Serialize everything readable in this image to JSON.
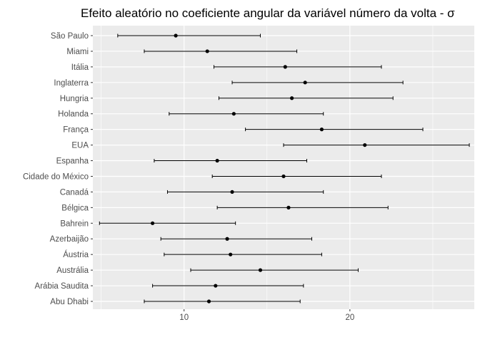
{
  "chart_data": {
    "type": "scatter",
    "title": "Efeito aleatório no coeficiente angular da variável número da volta - σ",
    "xlabel": "",
    "ylabel": "",
    "xlim": [
      4.5,
      27.5
    ],
    "x_major_ticks": [
      10,
      20
    ],
    "x_minor_ticks": [
      5,
      15,
      25
    ],
    "grid": true,
    "background": "#ebebeb",
    "grid_color": "#ffffff",
    "point_color": "#000000",
    "categories": [
      "São Paulo",
      "Miami",
      "Itália",
      "Inglaterra",
      "Hungria",
      "Holanda",
      "França",
      "EUA",
      "Espanha",
      "Cidade do México",
      "Canadá",
      "Bélgica",
      "Bahrein",
      "Azerbaijão",
      "Áustria",
      "Austrália",
      "Arábia Saudita",
      "Abu Dhabi"
    ],
    "points": [
      {
        "category": "São Paulo",
        "estimate": 9.5,
        "lower": 6.0,
        "upper": 14.6
      },
      {
        "category": "Miami",
        "estimate": 11.4,
        "lower": 7.6,
        "upper": 16.8
      },
      {
        "category": "Itália",
        "estimate": 16.1,
        "lower": 11.8,
        "upper": 21.9
      },
      {
        "category": "Inglaterra",
        "estimate": 17.3,
        "lower": 12.9,
        "upper": 23.2
      },
      {
        "category": "Hungria",
        "estimate": 16.5,
        "lower": 12.1,
        "upper": 22.6
      },
      {
        "category": "Holanda",
        "estimate": 13.0,
        "lower": 9.1,
        "upper": 18.4
      },
      {
        "category": "França",
        "estimate": 18.3,
        "lower": 13.7,
        "upper": 24.4
      },
      {
        "category": "EUA",
        "estimate": 20.9,
        "lower": 16.0,
        "upper": 27.2
      },
      {
        "category": "Espanha",
        "estimate": 12.0,
        "lower": 8.2,
        "upper": 17.4
      },
      {
        "category": "Cidade do México",
        "estimate": 16.0,
        "lower": 11.7,
        "upper": 21.9
      },
      {
        "category": "Canadá",
        "estimate": 12.9,
        "lower": 9.0,
        "upper": 18.4
      },
      {
        "category": "Bélgica",
        "estimate": 16.3,
        "lower": 12.0,
        "upper": 22.3
      },
      {
        "category": "Bahrein",
        "estimate": 8.1,
        "lower": 4.9,
        "upper": 13.1
      },
      {
        "category": "Azerbaijão",
        "estimate": 12.6,
        "lower": 8.6,
        "upper": 17.7
      },
      {
        "category": "Áustria",
        "estimate": 12.8,
        "lower": 8.8,
        "upper": 18.3
      },
      {
        "category": "Austrália",
        "estimate": 14.6,
        "lower": 10.4,
        "upper": 20.5
      },
      {
        "category": "Arábia Saudita",
        "estimate": 11.9,
        "lower": 8.1,
        "upper": 17.2
      },
      {
        "category": "Abu Dhabi",
        "estimate": 11.5,
        "lower": 7.6,
        "upper": 17.0
      }
    ]
  }
}
